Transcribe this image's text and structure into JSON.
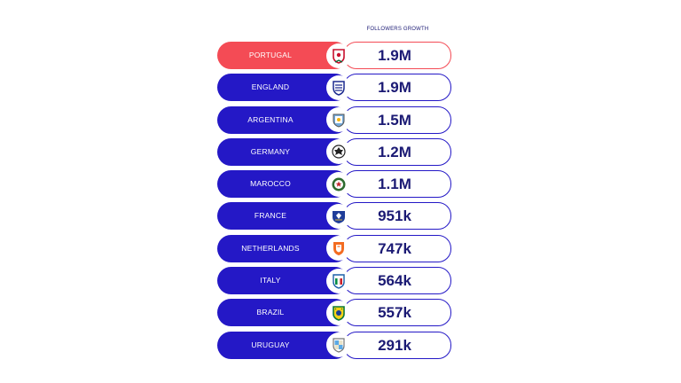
{
  "chart_data": {
    "type": "table",
    "column_header": "FOLLOWERS GROWTH",
    "categories": [
      "PORTUGAL",
      "ENGLAND",
      "ARGENTINA",
      "GERMANY",
      "MAROCCO",
      "FRANCE",
      "NETHERLANDS",
      "ITALY",
      "BRAZIL",
      "URUGUAY"
    ],
    "labels": [
      "1.9M",
      "1.9M",
      "1.5M",
      "1.2M",
      "1.1M",
      "951k",
      "747k",
      "564k",
      "557k",
      "291k"
    ],
    "values": [
      1900000,
      1900000,
      1500000,
      1200000,
      1100000,
      951000,
      747000,
      564000,
      557000,
      291000
    ],
    "highlighted": "PORTUGAL",
    "icons": [
      "portugal-crest-icon",
      "england-crest-icon",
      "argentina-crest-icon",
      "germany-crest-icon",
      "morocco-crest-icon",
      "france-crest-icon",
      "netherlands-crest-icon",
      "italy-crest-icon",
      "brazil-crest-icon",
      "uruguay-crest-icon"
    ],
    "colors": {
      "primary": "#2418c6",
      "highlight": "#f44b55",
      "text_dark": "#1b1a74"
    }
  }
}
